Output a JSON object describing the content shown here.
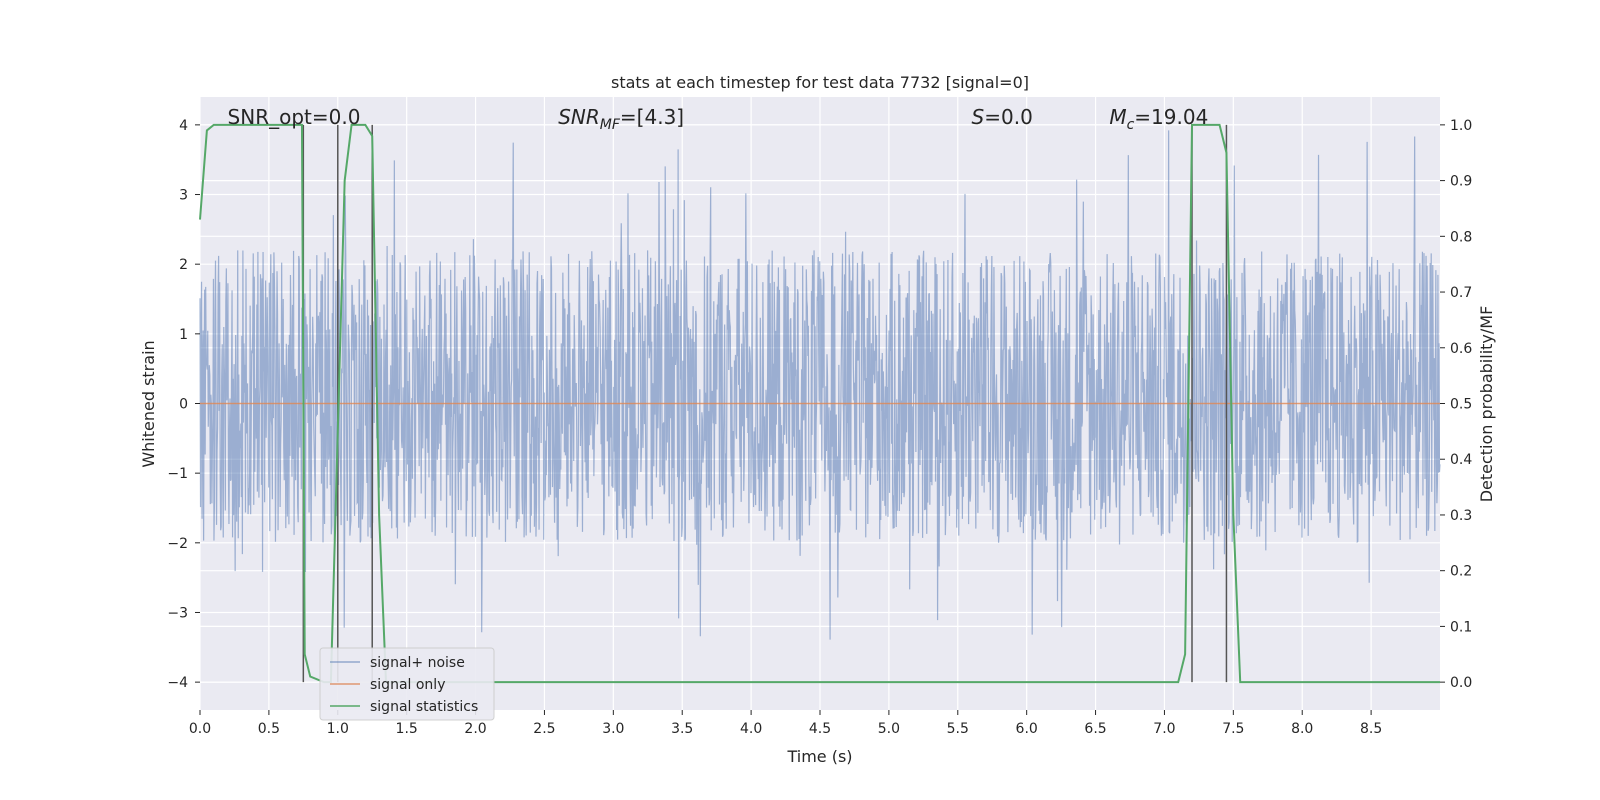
{
  "chart_data": {
    "type": "line",
    "title": "stats at each timestep for test data 7732 [signal=0]",
    "xlabel": "Time (s)",
    "ylabel": "Whitened strain",
    "y2label": "Detection probability/MF",
    "xlim": [
      0.0,
      9.0
    ],
    "ylim": [
      -4.4,
      4.4
    ],
    "y2lim": [
      -0.05,
      1.05
    ],
    "x_ticks": [
      0.0,
      0.5,
      1.0,
      1.5,
      2.0,
      2.5,
      3.0,
      3.5,
      4.0,
      4.5,
      5.0,
      5.5,
      6.0,
      6.5,
      7.0,
      7.5,
      8.0,
      8.5
    ],
    "x_tick_labels": [
      "0.0",
      "0.5",
      "1.0",
      "1.5",
      "2.0",
      "2.5",
      "3.0",
      "3.5",
      "4.0",
      "4.5",
      "5.0",
      "5.5",
      "6.0",
      "6.5",
      "7.0",
      "7.5",
      "8.0",
      "8.5"
    ],
    "y_ticks": [
      -4,
      -3,
      -2,
      -1,
      0,
      1,
      2,
      3,
      4
    ],
    "y_tick_labels": [
      "−4",
      "−3",
      "−2",
      "−1",
      "0",
      "1",
      "2",
      "3",
      "4"
    ],
    "y2_ticks": [
      0.0,
      0.1,
      0.2,
      0.3,
      0.4,
      0.5,
      0.6,
      0.7,
      0.8,
      0.9,
      1.0
    ],
    "y2_tick_labels": [
      "0.0",
      "0.1",
      "0.2",
      "0.3",
      "0.4",
      "0.5",
      "0.6",
      "0.7",
      "0.8",
      "0.9",
      "1.0"
    ],
    "grid": true,
    "legend_placement": "lower-left",
    "annotations": [
      {
        "text": "SNR_opt=0.0",
        "x": 0.2
      },
      {
        "text": "SNR_MF=[4.3]",
        "x": 2.6
      },
      {
        "text": "S=0.0",
        "x": 5.6
      },
      {
        "text": "M_c=19.04",
        "x": 6.6
      }
    ],
    "series": [
      {
        "name": "signal+ noise",
        "color": "#4c72b0",
        "alpha": 0.5,
        "kind": "noise",
        "envelope": {
          "typical_max": 2.2,
          "typical_min": -2.0,
          "peak_max": 3.95,
          "peak_min": -3.6
        }
      },
      {
        "name": "signal only",
        "color": "#dd8452",
        "x": [
          0.0,
          9.0
        ],
        "y": [
          0.0,
          0.0
        ]
      },
      {
        "name": "signal statistics",
        "color": "#55a868",
        "axis": "y2",
        "x": [
          0.0,
          0.05,
          0.1,
          0.5,
          0.74,
          0.76,
          0.8,
          0.9,
          0.95,
          1.05,
          1.1,
          1.2,
          1.25,
          1.3,
          1.35,
          1.4,
          7.1,
          7.15,
          7.2,
          7.25,
          7.4,
          7.45,
          7.5,
          7.55,
          9.0
        ],
        "y": [
          0.83,
          0.99,
          1.0,
          1.0,
          1.0,
          0.05,
          0.01,
          0.0,
          0.0,
          0.9,
          1.0,
          1.0,
          0.98,
          0.3,
          0.0,
          0.0,
          0.0,
          0.05,
          1.0,
          1.0,
          1.0,
          0.95,
          0.3,
          0.0,
          0.0
        ]
      }
    ],
    "vertical_lines": [
      {
        "x": 0.75,
        "y2_range": [
          0.0,
          1.0
        ]
      },
      {
        "x": 1.0,
        "y2_range": [
          0.0,
          1.0
        ]
      },
      {
        "x": 1.25,
        "y2_range": [
          0.0,
          1.0
        ]
      },
      {
        "x": 7.2,
        "y2_range": [
          0.0,
          1.0
        ]
      },
      {
        "x": 7.45,
        "y2_range": [
          0.0,
          1.0
        ]
      }
    ]
  }
}
